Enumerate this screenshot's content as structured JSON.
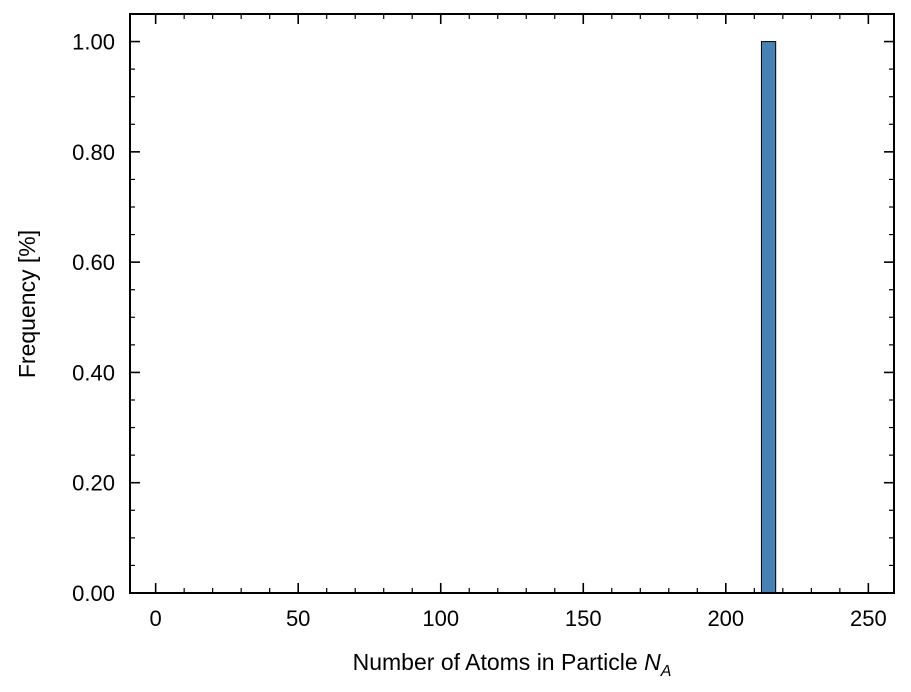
{
  "chart_data": {
    "type": "bar",
    "title": "",
    "xlabel": "Number of Atoms in Particle ",
    "xlabel_symbol": "N",
    "xlabel_subscript": "A",
    "ylabel": "Frequency [%]",
    "xlim": [
      -9,
      259
    ],
    "ylim": [
      0,
      1.05
    ],
    "x_ticks": [
      0,
      50,
      100,
      150,
      200,
      250
    ],
    "x_tick_labels": [
      "0",
      "50",
      "100",
      "150",
      "200",
      "250"
    ],
    "x_minor_step": 10,
    "y_ticks": [
      0,
      0.2,
      0.4,
      0.6,
      0.8,
      1.0
    ],
    "y_tick_labels": [
      "0.00",
      "0.20",
      "0.40",
      "0.60",
      "0.80",
      "1.00"
    ],
    "y_minor_step": 0.05,
    "bars": [
      {
        "x_start": 212.5,
        "x_end": 217.5,
        "value": 1.0
      }
    ],
    "bar_color": "#4682b4",
    "bar_edge_color": "#000000",
    "grid": false,
    "legend": "none"
  }
}
